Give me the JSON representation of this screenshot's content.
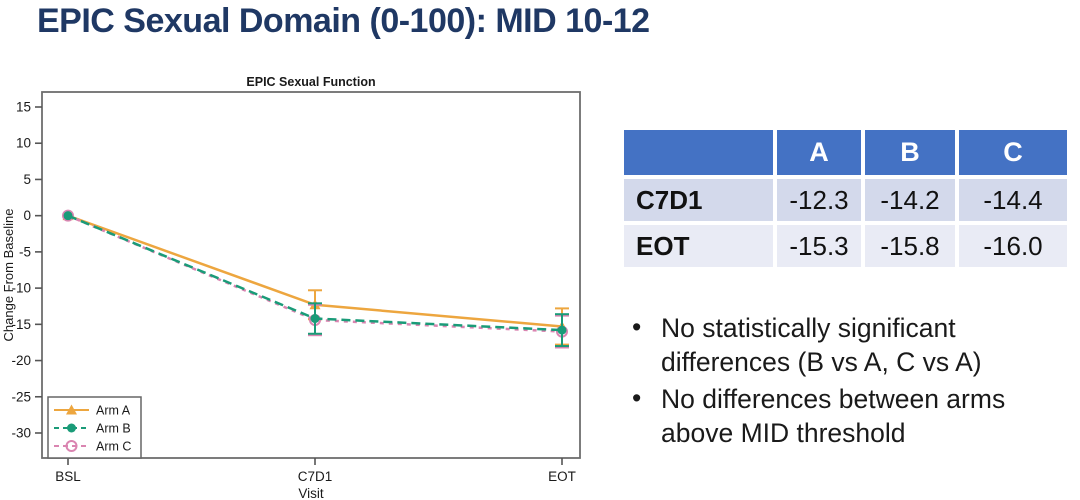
{
  "slide": {
    "title": "EPIC Sexual Domain (0-100): MID 10-12",
    "title_color": "#1F3864"
  },
  "chart_data": {
    "type": "line",
    "title": "EPIC Sexual Function",
    "xlabel": "Visit",
    "ylabel": "Change From Baseline",
    "categories": [
      "BSL",
      "C7D1",
      "EOT"
    ],
    "yticks": [
      15,
      10,
      5,
      0,
      -5,
      -10,
      -15,
      -20,
      -25,
      -30
    ],
    "ylim": [
      -33,
      17
    ],
    "grid": false,
    "legend_position": "inside-bottom-left",
    "frame_color": "#6e6e6e",
    "series": [
      {
        "name": "Arm A",
        "color": "#EDA63F",
        "marker": "triangle",
        "line_style": "solid",
        "values": [
          0,
          -12.3,
          -15.3
        ],
        "error_bars": [
          null,
          [
            -10.3,
            -14.3
          ],
          [
            -12.8,
            -17.8
          ]
        ]
      },
      {
        "name": "Arm B",
        "color": "#1A9B78",
        "marker": "circle",
        "line_style": "dashed",
        "values": [
          0,
          -14.2,
          -15.8
        ],
        "error_bars": [
          null,
          [
            -12.1,
            -16.3
          ],
          [
            -13.6,
            -18.0
          ]
        ]
      },
      {
        "name": "Arm C",
        "color": "#DA85B1",
        "marker": "open-circle",
        "line_style": "short-dash",
        "values": [
          0,
          -14.4,
          -16.0
        ],
        "error_bars": [
          null,
          [
            -12.3,
            -16.5
          ],
          [
            -13.8,
            -18.2
          ]
        ]
      }
    ]
  },
  "table": {
    "header": [
      "",
      "A",
      "B",
      "C"
    ],
    "header_bg": "#4472C4",
    "rows": [
      {
        "label": "C7D1",
        "values": [
          "-12.3",
          "-14.2",
          "-14.4"
        ]
      },
      {
        "label": "EOT",
        "values": [
          "-15.3",
          "-15.8",
          "-16.0"
        ]
      }
    ]
  },
  "bullets": [
    "No statistically significant differences (B vs A, C vs A)",
    "No differences between arms above MID threshold"
  ]
}
